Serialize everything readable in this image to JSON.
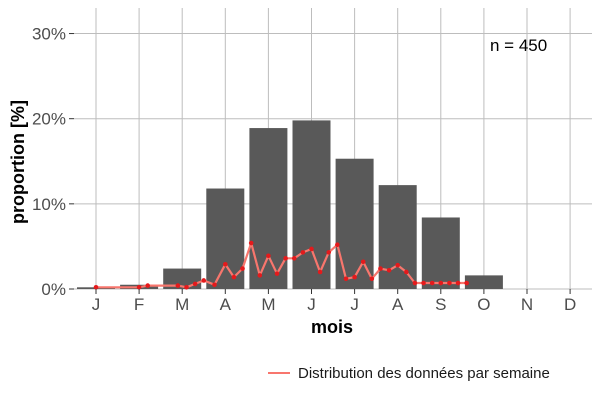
{
  "chart_data": {
    "type": "bar",
    "xlabel": "mois",
    "ylabel": "proportion [%]",
    "categories": [
      "J",
      "F",
      "M",
      "A",
      "M",
      "J",
      "J",
      "A",
      "S",
      "O",
      "N",
      "D"
    ],
    "values": [
      0.2,
      0.5,
      2.4,
      11.8,
      18.9,
      19.8,
      15.3,
      12.2,
      8.4,
      1.6,
      0,
      0
    ],
    "y_ticks": [
      0,
      10,
      20,
      30
    ],
    "y_tick_labels": [
      "0%",
      "10%",
      "20%",
      "30%"
    ],
    "ylim": [
      0,
      33
    ],
    "grid": true,
    "annotation": "n = 450",
    "line_series": {
      "name": "Distribution des données par semaine",
      "x": [
        1.0,
        2.0,
        2.2,
        2.9,
        3.1,
        3.3,
        3.5,
        3.75,
        4.0,
        4.2,
        4.4,
        4.6,
        4.8,
        5.0,
        5.2,
        5.4,
        5.6,
        5.8,
        6.0,
        6.2,
        6.4,
        6.6,
        6.8,
        7.0,
        7.2,
        7.4,
        7.6,
        7.8,
        8.0,
        8.2,
        8.4,
        8.6,
        8.8,
        9.0,
        9.2,
        9.4,
        9.6
      ],
      "y": [
        0.2,
        0.2,
        0.4,
        0.4,
        0.2,
        0.6,
        1.0,
        0.5,
        2.9,
        1.4,
        2.4,
        5.4,
        1.6,
        3.9,
        1.8,
        3.6,
        3.6,
        4.3,
        4.7,
        2.0,
        4.3,
        5.2,
        1.2,
        1.4,
        3.2,
        1.2,
        2.4,
        2.2,
        2.8,
        2.0,
        0.7,
        0.7,
        0.7,
        0.7,
        0.7,
        0.7,
        0.7
      ],
      "color": "#f8766d",
      "point_color": "#e41a1c"
    },
    "legend_position": "bottom-right",
    "bar_color": "#595959",
    "grid_color": "#bdbdbd"
  }
}
